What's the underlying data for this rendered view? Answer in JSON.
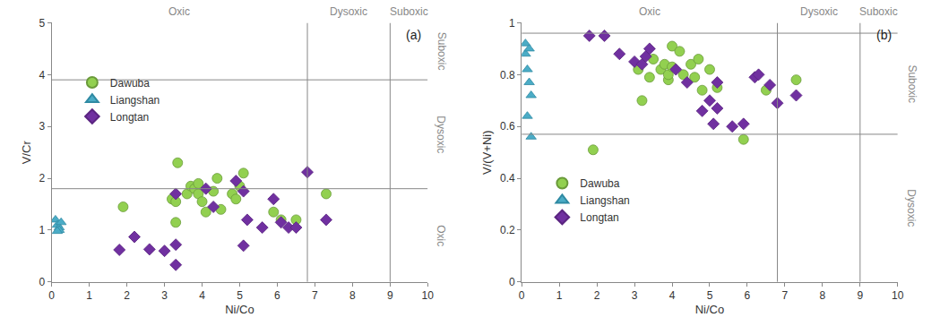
{
  "chart_data": [
    {
      "type": "scatter",
      "label": "(a)",
      "xlabel": "Ni/Co",
      "ylabel": "V/Cr",
      "xlim": [
        0,
        10
      ],
      "xticks": [
        0,
        1,
        2,
        3,
        4,
        5,
        6,
        7,
        8,
        9,
        10
      ],
      "ylim": [
        0,
        5
      ],
      "yticks": [
        0,
        1,
        2,
        3,
        4,
        5
      ],
      "x_lines": [
        6.8,
        9
      ],
      "y_lines": [
        1.8,
        3.9
      ],
      "x_zones": [
        "Oxic",
        "Dysoxic",
        "Suboxic"
      ],
      "y_zones": [
        "Oxic",
        "Dysoxic",
        "Suboxic"
      ],
      "legend": "upper left",
      "series": [
        {
          "name": "Dawuba",
          "color": "#92d050",
          "marker": "circle",
          "x": [
            1.9,
            3.2,
            3.3,
            3.3,
            3.35,
            3.6,
            3.7,
            3.8,
            3.9,
            3.9,
            4.0,
            4.1,
            4.3,
            4.4,
            4.5,
            4.8,
            4.9,
            5.0,
            5.1,
            5.9,
            6.1,
            6.5,
            7.3
          ],
          "values": [
            1.45,
            1.6,
            1.15,
            1.55,
            2.3,
            1.7,
            1.85,
            1.8,
            1.9,
            1.7,
            1.55,
            1.35,
            1.75,
            2.0,
            1.4,
            1.7,
            1.6,
            1.85,
            2.1,
            1.35,
            1.2,
            1.2,
            1.7
          ]
        },
        {
          "name": "Liangshan",
          "color": "#4bacc6",
          "marker": "triangle-up",
          "x": [
            0.1,
            0.15,
            0.2,
            0.2,
            0.25,
            0.15
          ],
          "values": [
            1.2,
            1.1,
            1.05,
            1.0,
            1.15,
            0.98
          ]
        },
        {
          "name": "Longtan",
          "color": "#7030a0",
          "marker": "diamond",
          "x": [
            1.8,
            2.2,
            2.6,
            3.0,
            3.3,
            3.3,
            3.3,
            4.1,
            4.3,
            4.9,
            5.1,
            5.1,
            5.2,
            5.6,
            5.9,
            6.1,
            6.3,
            6.5,
            6.8,
            7.3
          ],
          "values": [
            0.62,
            0.87,
            0.63,
            0.6,
            0.72,
            0.33,
            1.7,
            1.8,
            1.45,
            1.95,
            1.75,
            0.7,
            1.2,
            1.05,
            1.6,
            1.15,
            1.05,
            1.05,
            2.12,
            1.2
          ]
        }
      ]
    },
    {
      "type": "scatter",
      "label": "(b)",
      "xlabel": "Ni/Co",
      "ylabel": "V/(V+Ni)",
      "xlim": [
        0,
        10
      ],
      "xticks": [
        0,
        1,
        2,
        3,
        4,
        5,
        6,
        7,
        8,
        9,
        10
      ],
      "ylim": [
        0,
        1
      ],
      "yticks": [
        0,
        0.2,
        0.4,
        0.6,
        0.8,
        1
      ],
      "x_lines": [
        6.8,
        9
      ],
      "y_lines": [
        0.57,
        0.96
      ],
      "x_zones": [
        "Oxic",
        "Dysoxic",
        "Suboxic"
      ],
      "y_zones": [
        "Dysoxic",
        "Suboxic"
      ],
      "legend": "lower left",
      "series": [
        {
          "name": "Dawuba",
          "color": "#92d050",
          "marker": "circle",
          "x": [
            1.9,
            3.1,
            3.2,
            3.4,
            3.5,
            3.7,
            3.8,
            3.9,
            3.9,
            4.0,
            4.0,
            4.2,
            4.3,
            4.5,
            4.6,
            4.7,
            4.8,
            5.0,
            5.2,
            5.9,
            6.5,
            7.3
          ],
          "values": [
            0.51,
            0.82,
            0.7,
            0.79,
            0.86,
            0.82,
            0.84,
            0.78,
            0.8,
            0.91,
            0.83,
            0.89,
            0.8,
            0.84,
            0.79,
            0.86,
            0.74,
            0.82,
            0.75,
            0.55,
            0.74,
            0.78
          ]
        },
        {
          "name": "Liangshan",
          "color": "#4bacc6",
          "marker": "triangle-up",
          "x": [
            0.1,
            0.1,
            0.2,
            0.15,
            0.2,
            0.25,
            0.15,
            0.25
          ],
          "values": [
            0.92,
            0.88,
            0.9,
            0.82,
            0.77,
            0.72,
            0.64,
            0.56
          ]
        },
        {
          "name": "Longtan",
          "color": "#7030a0",
          "marker": "diamond",
          "x": [
            1.8,
            2.2,
            2.6,
            3.0,
            3.2,
            3.3,
            3.4,
            4.1,
            4.4,
            4.8,
            5.0,
            5.1,
            5.2,
            5.2,
            5.6,
            5.9,
            6.2,
            6.3,
            6.6,
            6.8,
            7.3
          ],
          "values": [
            0.95,
            0.95,
            0.88,
            0.85,
            0.84,
            0.87,
            0.9,
            0.82,
            0.77,
            0.66,
            0.7,
            0.61,
            0.67,
            0.77,
            0.6,
            0.61,
            0.79,
            0.8,
            0.76,
            0.69,
            0.72
          ]
        }
      ]
    }
  ]
}
